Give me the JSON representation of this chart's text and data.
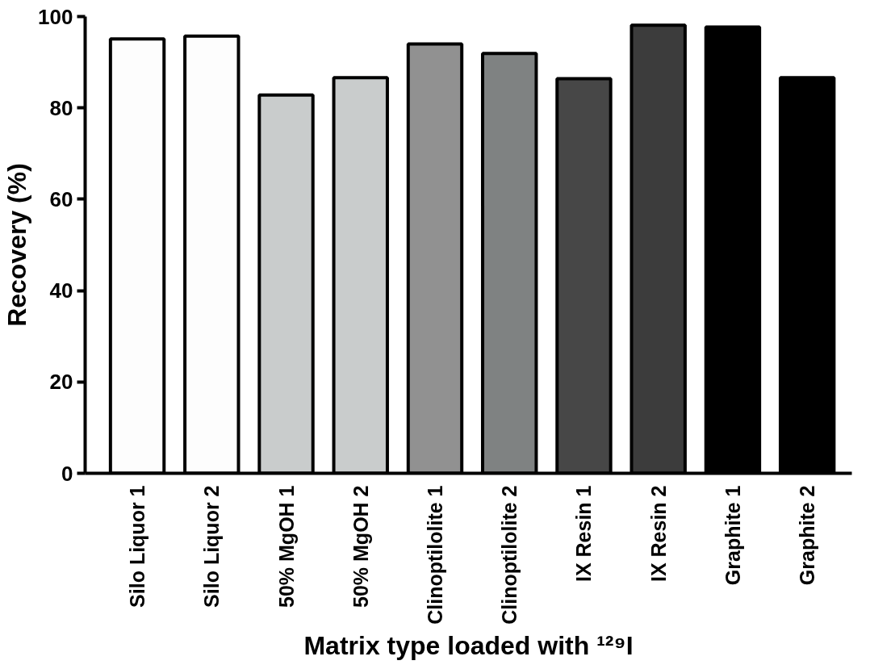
{
  "chart_data": {
    "type": "bar",
    "xlabel": "Matrix type loaded with ¹²⁹I",
    "ylabel": "Recovery (%)",
    "categories": [
      "Silo Liquor 1",
      "Silo Liquor 2",
      "50% MgOH 1",
      "50% MgOH 2",
      "Clinoptilolite 1",
      "Clinoptilolite 2",
      "IX Resin 1",
      "IX Resin 2",
      "Graphite 1",
      "Graphite 2"
    ],
    "values": [
      95.1,
      95.7,
      82.8,
      86.6,
      94.0,
      91.9,
      86.4,
      98.1,
      97.7,
      86.6
    ],
    "colors": [
      "#fdfdfd",
      "#fdfdfd",
      "#c9cccc",
      "#c9cccc",
      "#919191",
      "#7f8282",
      "#474747",
      "#3c3c3c",
      "#000000",
      "#000000"
    ],
    "ylim": [
      0,
      100
    ],
    "yticks": [
      0,
      20,
      40,
      60,
      80,
      100
    ],
    "grid": false
  }
}
